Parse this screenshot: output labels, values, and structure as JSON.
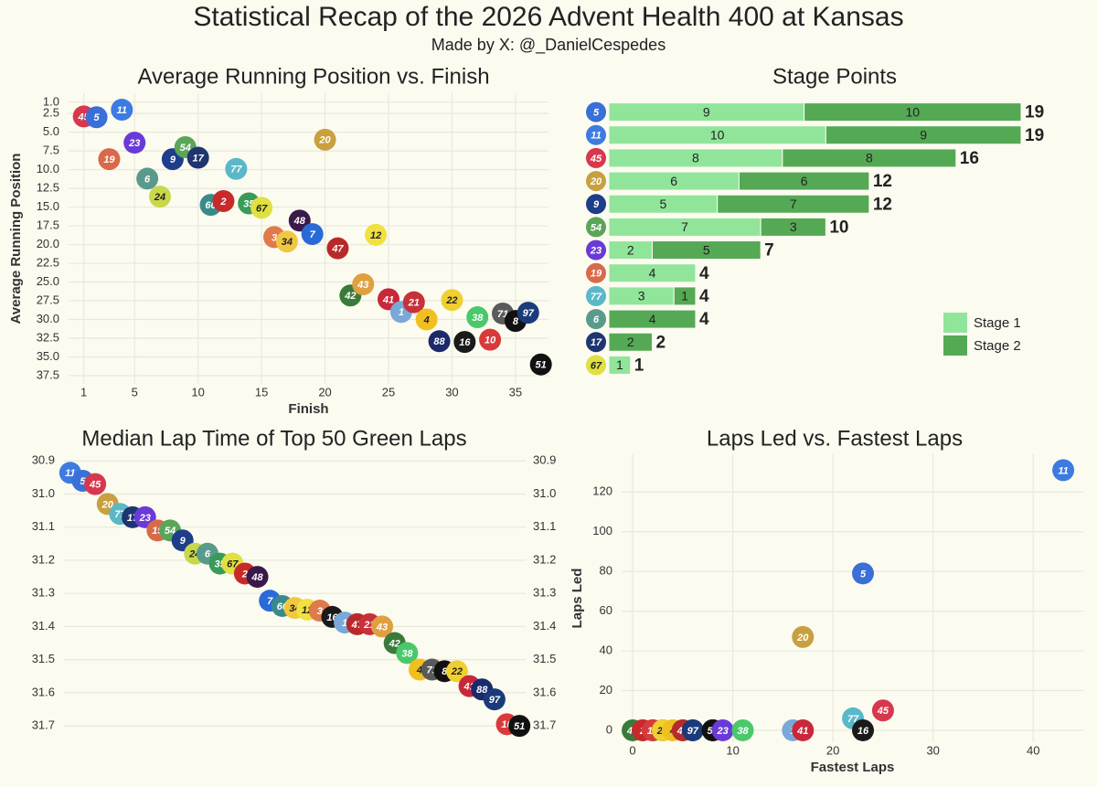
{
  "title": "Statistical Recap of the 2026 Advent Health 400 at Kansas",
  "subtitle": "Made by X: @_DanielCespedes",
  "car_colors": {
    "45": "#d7384e",
    "5": "#3a6fd8",
    "11": "#3d7be0",
    "19": "#d86a4a",
    "23": "#6a3ad8",
    "6": "#5a9a8a",
    "24": "#c8d84a",
    "9": "#1e3d8a",
    "54": "#5aa55a",
    "17": "#1e3570",
    "60": "#3a8a8a",
    "2": "#c82a2a",
    "77": "#5ab8c8",
    "35": "#3a9a5a",
    "67": "#e0e040",
    "3": "#e07a4a",
    "34": "#f0c840",
    "48": "#3a1a4a",
    "7": "#2a6ad8",
    "20": "#c8a040",
    "47": "#b82a2a",
    "42": "#3a7a3a",
    "43": "#e0a040",
    "12": "#f0e040",
    "41": "#c8283a",
    "1": "#7aa8d8",
    "21": "#c8303a",
    "4": "#f0c020",
    "88": "#1a2a6a",
    "22": "#f0d030",
    "16": "#1a1a1a",
    "38": "#4ac86a",
    "10": "#d83a3a",
    "71": "#5a5a5a",
    "8": "#111111",
    "97": "#1a3a7a",
    "51": "#111111"
  },
  "chart_data": [
    {
      "type": "scatter",
      "title": "Average Running Position vs. Finish",
      "xlabel": "Finish",
      "ylabel": "Average Running Position",
      "labels": [
        "45",
        "5",
        "19",
        "11",
        "23",
        "6",
        "24",
        "9",
        "54",
        "17",
        "60",
        "2",
        "77",
        "35",
        "67",
        "3",
        "34",
        "48",
        "7",
        "20",
        "47",
        "42",
        "43",
        "12",
        "41",
        "1",
        "21",
        "4",
        "88",
        "22",
        "16",
        "38",
        "10",
        "71",
        "8",
        "97",
        "51"
      ],
      "x": [
        1,
        2,
        3,
        4,
        5,
        6,
        7,
        8,
        9,
        10,
        11,
        12,
        13,
        14,
        15,
        16,
        17,
        18,
        19,
        20,
        21,
        22,
        23,
        24,
        25,
        26,
        27,
        28,
        29,
        30,
        31,
        32,
        33,
        34,
        35,
        36,
        37
      ],
      "values": [
        2.9,
        3.0,
        8.6,
        2.0,
        6.4,
        11.2,
        13.6,
        8.6,
        7.0,
        8.4,
        14.7,
        14.2,
        9.9,
        14.5,
        15.1,
        19.0,
        19.6,
        16.8,
        18.6,
        6.0,
        20.5,
        26.8,
        25.3,
        18.7,
        27.3,
        29.0,
        27.7,
        30.0,
        32.9,
        27.4,
        33.0,
        29.7,
        32.7,
        29.2,
        30.2,
        29.1,
        36.0
      ],
      "xlim": [
        -0.2,
        37.6
      ],
      "ylim": [
        -0.2,
        38.6
      ],
      "y_reversed": true,
      "grid": "both",
      "xticks": [
        1,
        5,
        10,
        15,
        20,
        25,
        30,
        35
      ],
      "yticks": [
        {
          "value": 1,
          "label": "1.0"
        },
        {
          "value": 2.5,
          "label": "2.5"
        },
        {
          "value": 5,
          "label": "5.0"
        },
        {
          "value": 7.5,
          "label": "7.5"
        },
        {
          "value": 10,
          "label": "10.0"
        },
        {
          "value": 12.5,
          "label": "12.5"
        },
        {
          "value": 15,
          "label": "15.0"
        },
        {
          "value": 17.5,
          "label": "17.5"
        },
        {
          "value": 20,
          "label": "20.0"
        },
        {
          "value": 22.5,
          "label": "22.5"
        },
        {
          "value": 25,
          "label": "25.0"
        },
        {
          "value": 27.5,
          "label": "27.5"
        },
        {
          "value": 30,
          "label": "30.0"
        },
        {
          "value": 32.5,
          "label": "32.5"
        },
        {
          "value": 35,
          "label": "35.0"
        },
        {
          "value": 37.5,
          "label": "37.5"
        }
      ]
    },
    {
      "type": "bar",
      "title": "Stage Points",
      "orientation": "horizontal",
      "stacked": true,
      "legend": "bottom-right",
      "categories": [
        "5",
        "11",
        "45",
        "20",
        "9",
        "54",
        "23",
        "19",
        "77",
        "6",
        "17",
        "67"
      ],
      "series": [
        {
          "name": "Stage 1",
          "color": "#90e59a",
          "values": [
            9,
            10,
            8,
            6,
            5,
            7,
            2,
            4,
            3,
            null,
            null,
            1
          ]
        },
        {
          "name": "Stage 2",
          "color": "#55a955",
          "values": [
            10,
            9,
            8,
            6,
            7,
            3,
            5,
            null,
            1,
            4,
            2,
            null
          ]
        }
      ],
      "totals": [
        19,
        19,
        16,
        12,
        12,
        10,
        7,
        4,
        4,
        4,
        2,
        1
      ],
      "xlim": [
        0,
        19
      ]
    },
    {
      "type": "dot",
      "title": "Median Lap Time of Top 50 Green Laps",
      "categories": [
        "11",
        "5",
        "45",
        "20",
        "77",
        "17",
        "23",
        "19",
        "54",
        "9",
        "24",
        "6",
        "35",
        "67",
        "2",
        "48",
        "7",
        "60",
        "34",
        "12",
        "3",
        "16",
        "1",
        "47",
        "21",
        "43",
        "42",
        "38",
        "4",
        "71",
        "8",
        "22",
        "41",
        "88",
        "97",
        "10",
        "51"
      ],
      "values": [
        30.936,
        30.96,
        30.97,
        31.03,
        31.06,
        31.07,
        31.07,
        31.11,
        31.11,
        31.14,
        31.18,
        31.18,
        31.21,
        31.21,
        31.24,
        31.25,
        31.322,
        31.338,
        31.344,
        31.349,
        31.352,
        31.371,
        31.388,
        31.393,
        31.393,
        31.4,
        31.45,
        31.48,
        31.53,
        31.53,
        31.535,
        31.535,
        31.58,
        31.59,
        31.62,
        31.695,
        31.7
      ],
      "ylim": [
        30.88,
        31.73
      ],
      "y_reversed": true,
      "grid": "y",
      "y_ticks_both_sides": true,
      "yticks": [
        30.9,
        {
          "value": 31,
          "label": "31.0"
        },
        31.1,
        31.2,
        31.3,
        31.4,
        31.5,
        31.6,
        31.7
      ]
    },
    {
      "type": "scatter",
      "title": "Laps Led vs. Fastest Laps",
      "xlabel": "Fastest Laps",
      "ylabel": "Laps Led",
      "labels": [
        "42",
        "60",
        "2",
        "88",
        "10",
        "17",
        "22",
        "34",
        "4",
        "54",
        "47",
        "71",
        "97",
        "8",
        "51",
        "23",
        "38",
        "1",
        "41",
        "77",
        "16",
        "45",
        "20",
        "5",
        "11"
      ],
      "x": [
        0,
        1,
        1,
        2,
        2,
        3,
        3,
        4,
        4,
        5,
        5,
        6,
        6,
        8,
        8,
        9,
        11,
        16,
        17,
        22,
        23,
        25,
        17,
        23,
        43
      ],
      "values": [
        0,
        0,
        0,
        0,
        0,
        0,
        0,
        0,
        0,
        0,
        0,
        0,
        0,
        0,
        0,
        0,
        0,
        0,
        0,
        6,
        0,
        10,
        47,
        79,
        131
      ],
      "xlim": [
        -1.1,
        45
      ],
      "ylim": [
        -6,
        139
      ],
      "grid": "both",
      "xticks": [
        0,
        10,
        20,
        30,
        40
      ],
      "yticks": [
        0,
        20,
        40,
        60,
        80,
        100,
        120
      ]
    }
  ]
}
